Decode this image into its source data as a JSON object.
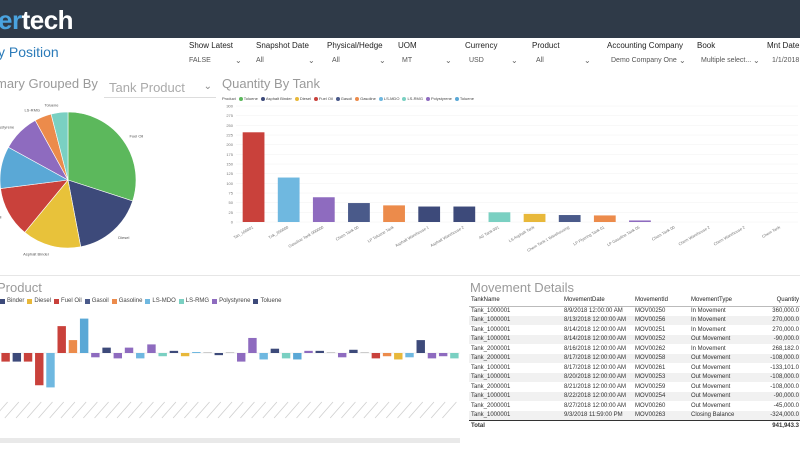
{
  "app": {
    "logo_text": "tech",
    "logo_prefix": "er",
    "page_title": "y Position"
  },
  "filters": [
    {
      "label": "Show Latest",
      "value": "FALSE"
    },
    {
      "label": "Snapshot Date",
      "value": "All"
    },
    {
      "label": "Physical/Hedge",
      "value": "All"
    },
    {
      "label": "UOM",
      "value": "MT"
    },
    {
      "label": "Currency",
      "value": "USD"
    },
    {
      "label": "Product",
      "value": "All"
    },
    {
      "label": "Accounting Company",
      "value": "Demo Company One"
    },
    {
      "label": "Book",
      "value": "Multiple select..."
    },
    {
      "label": "Mnt Date",
      "value": "1/1/2018"
    }
  ],
  "summary_panel": {
    "title": "mary Grouped By",
    "dropdown_value": "Tank Product",
    "pie_labels": [
      "Diesel",
      "LS-RMG",
      "LS-MDO",
      "Fuel Oil",
      "Gasoil",
      "Asphalt Binder"
    ]
  },
  "quantity_panel": {
    "title": "Quantity By Tank",
    "legend_title": "Product",
    "legend": [
      {
        "name": "Toluene",
        "color": "#5cb85c"
      },
      {
        "name": "Asphalt Binder",
        "color": "#3d4a7a"
      },
      {
        "name": "Diesel",
        "color": "#e8b83a"
      },
      {
        "name": "Fuel Oil",
        "color": "#c9413b"
      },
      {
        "name": "Gasoil",
        "color": "#4a5a8a"
      },
      {
        "name": "Gasoline",
        "color": "#ec8b4b"
      },
      {
        "name": "LS-MDO",
        "color": "#6fb8e0"
      },
      {
        "name": "LS-RMG",
        "color": "#7ad0c2"
      },
      {
        "name": "Polystyrene",
        "color": "#8e6bbf"
      },
      {
        "name": "Toluene",
        "color": "#5aa8d6"
      }
    ]
  },
  "product_panel": {
    "title": "Product",
    "legend": [
      {
        "name": "Binder",
        "color": "#3d4a7a"
      },
      {
        "name": "Diesel",
        "color": "#e8b83a"
      },
      {
        "name": "Fuel Oil",
        "color": "#c9413b"
      },
      {
        "name": "Gasoil",
        "color": "#4a5a8a"
      },
      {
        "name": "Gasoline",
        "color": "#ec8b4b"
      },
      {
        "name": "LS-MDO",
        "color": "#6fb8e0"
      },
      {
        "name": "LS-RMG",
        "color": "#7ad0c2"
      },
      {
        "name": "Polystyrene",
        "color": "#8e6bbf"
      },
      {
        "name": "Toluene",
        "color": "#3d4a7a"
      }
    ]
  },
  "movement_panel": {
    "title": "Movement Details",
    "columns": [
      "TankName",
      "MovementDate",
      "MovementId",
      "MovementType",
      "Quantity"
    ],
    "rows": [
      [
        "Tank_1000001",
        "8/9/2018 12:00:00 AM",
        "MOV00250",
        "In Movement",
        "360,000.0"
      ],
      [
        "Tank_1000001",
        "8/13/2018 12:00:00 AM",
        "MOV00256",
        "In Movement",
        "270,000.0"
      ],
      [
        "Tank_1000001",
        "8/14/2018 12:00:00 AM",
        "MOV00251",
        "In Movement",
        "270,000.0"
      ],
      [
        "Tank_1000001",
        "8/14/2018 12:00:00 AM",
        "MOV00252",
        "Out Movement",
        "-90,000.0"
      ],
      [
        "Tank_2000001",
        "8/16/2018 12:00:00 AM",
        "MOV00262",
        "In Movement",
        "268,182.0"
      ],
      [
        "Tank_2000001",
        "8/17/2018 12:00:00 AM",
        "MOV00258",
        "Out Movement",
        "-108,000.0"
      ],
      [
        "Tank_1000001",
        "8/17/2018 12:00:00 AM",
        "MOV00261",
        "Out Movement",
        "-133,101.0"
      ],
      [
        "Tank_1000001",
        "8/20/2018 12:00:00 AM",
        "MOV00253",
        "Out Movement",
        "-108,000.0"
      ],
      [
        "Tank_2000001",
        "8/21/2018 12:00:00 AM",
        "MOV00259",
        "Out Movement",
        "-108,000.0"
      ],
      [
        "Tank_1000001",
        "8/22/2018 12:00:00 AM",
        "MOV00254",
        "Out Movement",
        "-90,000.0"
      ],
      [
        "Tank_2000001",
        "8/27/2018 12:00:00 AM",
        "MOV00260",
        "Out Movement",
        "-45,000.0"
      ],
      [
        "Tank_1000001",
        "9/3/2018 11:59:00 PM",
        "MOV00263",
        "Closing Balance",
        "-324,000.0"
      ]
    ],
    "total_label": "Total",
    "total_value": "941,943.3"
  },
  "chart_data": [
    {
      "type": "pie",
      "title": "",
      "slices": [
        {
          "name": "Fuel Oil",
          "value": 30,
          "color": "#5cb85c"
        },
        {
          "name": "Diesel",
          "value": 17,
          "color": "#3d4a7a"
        },
        {
          "name": "Asphalt Binder",
          "value": 14,
          "color": "#e8c23a"
        },
        {
          "name": "Gasoil",
          "value": 12,
          "color": "#c9413b"
        },
        {
          "name": "LS-MDO",
          "value": 10,
          "color": "#5aa8d6"
        },
        {
          "name": "Polystyrene",
          "value": 9,
          "color": "#8e6bbf"
        },
        {
          "name": "LS-RMG",
          "value": 4,
          "color": "#ec8b4b"
        },
        {
          "name": "Toluene",
          "value": 4,
          "color": "#7ad0c2"
        }
      ]
    },
    {
      "type": "bar",
      "title": "Quantity By Tank",
      "ylim": [
        0,
        300
      ],
      "yticks": [
        0,
        25,
        50,
        75,
        100,
        125,
        150,
        175,
        200,
        225,
        250,
        275,
        300
      ],
      "categories": [
        "Tan_100001",
        "Tnk_200000",
        "Gasoline Tank 000000",
        "Chem Tank 00",
        "LP Toluene Tank",
        "Asphalt Warehouse 1",
        "Asphalt Warehouse 2",
        "AS Tank 001",
        "LS Asphalt Tank",
        "Chem Tank 1 Warehousing",
        "LP Flyering Tank 01",
        "LP Gasoline Tank 05",
        "Chem Tank 00",
        "Chem Warehouse 2",
        "Chem Warehouse 2",
        "Chem Tank"
      ],
      "values": [
        232,
        115,
        64,
        49,
        43,
        40,
        40,
        25,
        21,
        18,
        17,
        4,
        0,
        0,
        0,
        0
      ],
      "colors": [
        "#c9413b",
        "#6fb8e0",
        "#8e6bbf",
        "#4a5a8a",
        "#ec8b4b",
        "#3d4a7a",
        "#3d4a7a",
        "#7ad0c2",
        "#e8b83a",
        "#4a5a8a",
        "#ec8b4b",
        "#8e6bbf",
        "#cccccc",
        "#cccccc",
        "#cccccc",
        "#cccccc"
      ]
    },
    {
      "type": "bar",
      "title": "Product",
      "ylim": [
        -40,
        40
      ],
      "bars": [
        {
          "value": -8,
          "color": "#c9413b"
        },
        {
          "value": -8,
          "color": "#3d4a7a"
        },
        {
          "value": -8,
          "color": "#c9413b"
        },
        {
          "value": -30,
          "color": "#c9413b"
        },
        {
          "value": -32,
          "color": "#6fb8e0"
        },
        {
          "value": 25,
          "color": "#c9413b"
        },
        {
          "value": 12,
          "color": "#ec8b4b"
        },
        {
          "value": 32,
          "color": "#5aa8d6"
        },
        {
          "value": -4,
          "color": "#8e6bbf"
        },
        {
          "value": 5,
          "color": "#3d4a7a"
        },
        {
          "value": -5,
          "color": "#8e6bbf"
        },
        {
          "value": 5,
          "color": "#8e6bbf"
        },
        {
          "value": -5,
          "color": "#6fb8e0"
        },
        {
          "value": 8,
          "color": "#8e6bbf"
        },
        {
          "value": -3,
          "color": "#7ad0c2"
        },
        {
          "value": 2,
          "color": "#3d4a7a"
        },
        {
          "value": -3,
          "color": "#e8b83a"
        },
        {
          "value": 0,
          "color": "#6fb8e0"
        },
        {
          "value": 0,
          "color": "#cccccc"
        },
        {
          "value": -2,
          "color": "#3d4a7a"
        },
        {
          "value": 0,
          "color": "#cccccc"
        },
        {
          "value": -8,
          "color": "#8e6bbf"
        },
        {
          "value": 14,
          "color": "#8e6bbf"
        },
        {
          "value": -6,
          "color": "#6fb8e0"
        },
        {
          "value": 4,
          "color": "#3d4a7a"
        },
        {
          "value": -5,
          "color": "#7ad0c2"
        },
        {
          "value": -6,
          "color": "#5aa8d6"
        },
        {
          "value": 2,
          "color": "#8e6bbf"
        },
        {
          "value": 2,
          "color": "#3d4a7a"
        },
        {
          "value": 0,
          "color": "#cccccc"
        },
        {
          "value": -4,
          "color": "#8e6bbf"
        },
        {
          "value": 3,
          "color": "#3d4a7a"
        },
        {
          "value": 0,
          "color": "#cccccc"
        },
        {
          "value": -5,
          "color": "#c9413b"
        },
        {
          "value": -3,
          "color": "#ec8b4b"
        },
        {
          "value": -6,
          "color": "#e8b83a"
        },
        {
          "value": -4,
          "color": "#6fb8e0"
        },
        {
          "value": 12,
          "color": "#3d4a7a"
        },
        {
          "value": -5,
          "color": "#8e6bbf"
        },
        {
          "value": -3,
          "color": "#8e6bbf"
        },
        {
          "value": -5,
          "color": "#7ad0c2"
        }
      ]
    }
  ]
}
